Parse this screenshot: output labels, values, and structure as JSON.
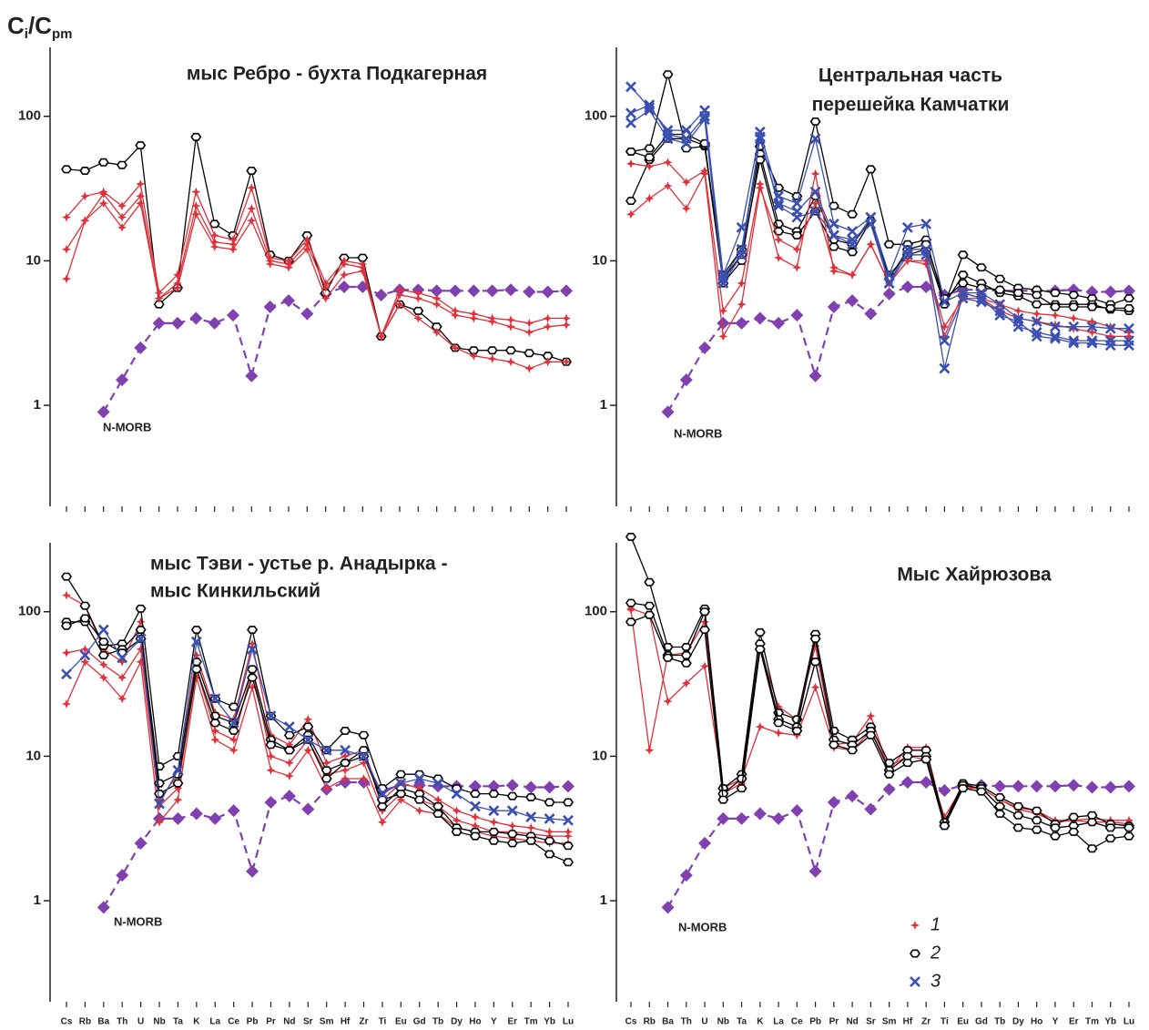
{
  "chart_data": [
    {
      "type": "line",
      "log_scale": true,
      "ylabel": [
        "C",
        "i",
        "/C",
        "pm"
      ],
      "title": [
        "мыс Ребро - бухта Подкагерная"
      ],
      "annotation": "N-MORB",
      "categories": [
        null,
        null,
        null,
        null,
        null,
        null,
        null,
        null,
        null,
        null,
        null,
        null,
        null,
        null,
        null,
        null,
        null,
        null,
        null,
        null,
        null,
        null,
        null,
        null,
        null,
        null,
        null,
        null
      ],
      "ylim": [
        0.2,
        300
      ],
      "yticks": [
        1,
        10,
        100
      ],
      "series": [
        {
          "color": "#8040b0",
          "marker": "diamond",
          "dashed": true,
          "values": [
            null,
            null,
            0.9,
            1.5,
            2.5,
            3.7,
            3.7,
            4.0,
            3.7,
            4.2,
            1.6,
            4.8,
            5.3,
            4.3,
            5.9,
            6.6,
            6.6,
            5.8,
            6.3,
            6.3,
            6.2,
            6.2,
            6.2,
            6.2,
            6.3,
            6.1,
            6.1,
            6.2
          ]
        },
        {
          "color": "#000000",
          "marker": "hexagon",
          "values": [
            43,
            42,
            48,
            46,
            63,
            5,
            6.5,
            72,
            18,
            15,
            42,
            11,
            10,
            15,
            6,
            10.5,
            10.5,
            3,
            5,
            4.5,
            3.5,
            2.5,
            2.4,
            2.4,
            2.4,
            2.3,
            2.2,
            2.0
          ]
        },
        {
          "color": "#e0303a",
          "marker": "star",
          "values": [
            20,
            28,
            30,
            24,
            34,
            6,
            8,
            30,
            15,
            14,
            32,
            10.5,
            10,
            14,
            7,
            10,
            9.5,
            3,
            6.3,
            6,
            5.5,
            4.5,
            4.3,
            4.0,
            3.9,
            3.7,
            4.0,
            4.0
          ]
        },
        {
          "color": "#e0303a",
          "marker": "star",
          "values": [
            12,
            19,
            29,
            20,
            28,
            5.5,
            7,
            24,
            13.5,
            13,
            23,
            10,
            9.5,
            13,
            6.5,
            9.5,
            9,
            3,
            5.8,
            5.5,
            5,
            4.2,
            4,
            3.8,
            3.5,
            3.2,
            3.5,
            3.6
          ]
        },
        {
          "color": "#e0303a",
          "marker": "star",
          "values": [
            7.5,
            19,
            25,
            17,
            25,
            5.5,
            6.5,
            21,
            12.5,
            12,
            19,
            9.5,
            9,
            12,
            5.5,
            8,
            8.5,
            3,
            5,
            4,
            3.2,
            2.5,
            2.2,
            2.1,
            2.0,
            1.8,
            2.0,
            2.0
          ]
        }
      ]
    },
    {
      "type": "line",
      "log_scale": true,
      "title": [
        "Центральная часть",
        "перешейка Камчатки"
      ],
      "annotation": "N-MORB",
      "categories": [
        null,
        null,
        null,
        null,
        null,
        null,
        null,
        null,
        null,
        null,
        null,
        null,
        null,
        null,
        null,
        null,
        null,
        null,
        null,
        null,
        null,
        null,
        null,
        null,
        null,
        null,
        null,
        null
      ],
      "ylim": [
        0.2,
        300
      ],
      "yticks": [
        1,
        10,
        100
      ],
      "series": [
        {
          "color": "#8040b0",
          "marker": "diamond",
          "dashed": true,
          "values": [
            null,
            null,
            0.9,
            1.5,
            2.5,
            3.7,
            3.7,
            4.0,
            3.7,
            4.2,
            1.6,
            4.8,
            5.3,
            4.3,
            5.9,
            6.6,
            6.6,
            5.8,
            6.3,
            6.3,
            6.2,
            6.2,
            6.2,
            6.2,
            6.3,
            6.1,
            6.1,
            6.2
          ]
        },
        {
          "color": "#000000",
          "marker": "hexagon",
          "values": [
            57,
            60,
            195,
            60,
            62,
            8,
            12,
            62,
            32,
            28,
            92,
            24,
            21,
            43,
            13,
            13,
            14,
            5,
            11,
            9,
            7.5,
            6.5,
            6.3,
            6,
            5.8,
            5.5,
            5,
            5.5
          ]
        },
        {
          "color": "#000000",
          "marker": "hexagon",
          "values": [
            26,
            50,
            70,
            70,
            63,
            7,
            10,
            55,
            18,
            16,
            28,
            14,
            13,
            19,
            8,
            11,
            12,
            5,
            8,
            7,
            6,
            5.7,
            5,
            5,
            5,
            5,
            4.6,
            4.5
          ]
        },
        {
          "color": "#000000",
          "marker": "hexagon",
          "values": [
            57,
            52,
            75,
            75,
            65,
            7.5,
            11,
            50,
            16,
            15,
            22,
            12.5,
            11.5,
            19,
            7.5,
            12,
            13,
            5.5,
            7,
            6.5,
            6.3,
            6,
            5.8,
            4.8,
            4.8,
            4.8,
            4.7,
            4.7
          ]
        },
        {
          "color": "#e0303a",
          "marker": "star",
          "values": [
            47,
            45,
            48,
            35,
            42,
            4.5,
            7,
            34,
            10.5,
            9,
            40,
            8.5,
            8,
            13,
            7,
            10,
            10,
            3.5,
            5.5,
            5.5,
            5,
            4.5,
            4.3,
            4.2,
            4,
            3.8,
            3.5,
            3.2
          ]
        },
        {
          "color": "#e0303a",
          "marker": "star",
          "values": [
            21,
            27,
            33,
            23,
            40,
            3,
            5,
            32,
            14,
            12,
            25,
            9,
            8,
            13,
            7,
            10,
            9.5,
            3,
            6,
            5.5,
            4.5,
            4,
            3.8,
            3.6,
            3.4,
            3.2,
            3.0,
            3.0
          ]
        },
        {
          "color": "#3a4fb0",
          "marker": "x",
          "values": [
            160,
            115,
            80,
            80,
            110,
            8,
            17,
            78,
            28,
            25,
            70,
            18,
            16,
            20,
            8,
            17,
            18,
            5.2,
            6,
            6,
            5,
            4,
            3.8,
            3.5,
            3.5,
            3.5,
            3.4,
            3.4
          ]
        },
        {
          "color": "#3a4fb0",
          "marker": "x",
          "values": [
            105,
            120,
            75,
            70,
            100,
            7.5,
            12,
            70,
            25,
            22,
            30,
            15,
            13,
            20,
            7,
            12,
            12,
            2.8,
            5.5,
            5.2,
            4.5,
            3.5,
            3.2,
            3,
            2.8,
            2.8,
            2.8,
            2.8
          ]
        },
        {
          "color": "#3a4fb0",
          "marker": "x",
          "values": [
            90,
            110,
            70,
            65,
            95,
            7,
            11,
            72,
            24,
            20,
            22,
            15,
            14,
            18,
            7,
            11,
            11,
            1.8,
            6,
            5.5,
            4.2,
            3.8,
            3,
            2.9,
            2.7,
            2.7,
            2.6,
            2.6
          ]
        }
      ]
    },
    {
      "type": "line",
      "log_scale": true,
      "title": [
        "мыс Тэви - устье р. Анадырка -",
        "мыс Кинкильский"
      ],
      "annotation": "N-MORB",
      "categories": [
        "Cs",
        "Rb",
        "Ba",
        "Th",
        "U",
        "Nb",
        "Ta",
        "K",
        "La",
        "Ce",
        "Pb",
        "Pr",
        "Nd",
        "Sr",
        "Sm",
        "Hf",
        "Zr",
        "Ti",
        "Eu",
        "Gd",
        "Tb",
        "Dy",
        "Ho",
        "Y",
        "Er",
        "Tm",
        "Yb",
        "Lu"
      ],
      "ylim": [
        0.2,
        300
      ],
      "yticks": [
        1,
        10,
        100
      ],
      "series": [
        {
          "color": "#8040b0",
          "marker": "diamond",
          "dashed": true,
          "values": [
            null,
            null,
            0.9,
            1.5,
            2.5,
            3.7,
            3.7,
            4.0,
            3.7,
            4.2,
            1.6,
            4.8,
            5.3,
            4.3,
            5.9,
            6.6,
            6.6,
            5.8,
            6.3,
            6.3,
            6.2,
            6.2,
            6.2,
            6.2,
            6.3,
            6.1,
            6.1,
            6.2
          ]
        },
        {
          "color": "#e0303a",
          "marker": "star",
          "values": [
            130,
            110,
            55,
            45,
            85,
            5,
            7.5,
            50,
            20,
            18,
            60,
            14,
            12,
            18,
            9,
            10,
            11,
            5,
            6.5,
            6,
            5,
            4.2,
            3.8,
            3.5,
            3.3,
            3.2,
            3,
            3
          ]
        },
        {
          "color": "#e0303a",
          "marker": "star",
          "values": [
            52,
            55,
            43,
            35,
            55,
            4.5,
            6,
            40,
            15,
            13,
            40,
            10,
            9,
            13,
            7.5,
            8,
            9,
            4.2,
            5.5,
            5,
            4.5,
            3.6,
            3.3,
            3,
            3,
            2.9,
            2.8,
            2.8
          ]
        },
        {
          "color": "#e0303a",
          "marker": "star",
          "values": [
            23,
            45,
            35,
            25,
            45,
            3.5,
            5,
            35,
            13,
            11,
            30,
            8,
            7.3,
            11,
            6,
            7,
            7,
            3.5,
            5,
            4.2,
            4,
            3.2,
            3,
            2.8,
            2.7,
            2.6,
            2.5,
            2.5
          ]
        },
        {
          "color": "#000000",
          "marker": "hexagon",
          "values": [
            175,
            110,
            58,
            60,
            105,
            8.5,
            10,
            75,
            25,
            22,
            75,
            19,
            14,
            16,
            11,
            15,
            14,
            6,
            7.5,
            7.5,
            7,
            6,
            5.5,
            5.5,
            5.3,
            5.2,
            4.8,
            4.8
          ]
        },
        {
          "color": "#000000",
          "marker": "hexagon",
          "values": [
            85,
            85,
            50,
            55,
            75,
            6.5,
            7.5,
            45,
            19,
            17,
            40,
            13,
            11,
            14,
            8,
            9,
            11,
            4.5,
            6,
            5.5,
            4.5,
            3.2,
            3,
            3,
            2.9,
            2.8,
            2.6,
            2.4
          ]
        },
        {
          "color": "#000000",
          "marker": "hexagon",
          "values": [
            80,
            90,
            62,
            52,
            65,
            5.5,
            6.5,
            40,
            17,
            15,
            35,
            12,
            11,
            13,
            7,
            9,
            10,
            5,
            5.5,
            5,
            4,
            3,
            2.8,
            2.6,
            2.5,
            2.6,
            2.1,
            1.85
          ]
        },
        {
          "color": "#3a4fb0",
          "marker": "x",
          "values": [
            37,
            50,
            75,
            48,
            65,
            4.7,
            8,
            62,
            25,
            17,
            55,
            19,
            16,
            13,
            11,
            11,
            10,
            5.5,
            6.5,
            7,
            6.5,
            5.5,
            4.5,
            4.2,
            4.2,
            3.8,
            3.7,
            3.6
          ]
        }
      ]
    },
    {
      "type": "line",
      "log_scale": true,
      "title": [
        "Мыс Хайрюзова"
      ],
      "annotation": "N-MORB",
      "categories": [
        "Cs",
        "Rb",
        "Ba",
        "Th",
        "U",
        "Nb",
        "Ta",
        "K",
        "La",
        "Ce",
        "Pb",
        "Pr",
        "Nd",
        "Sr",
        "Sm",
        "Hf",
        "Zr",
        "Ti",
        "Eu",
        "Gd",
        "Tb",
        "Dy",
        "Ho",
        "Y",
        "Er",
        "Tm",
        "Yb",
        "Lu"
      ],
      "ylim": [
        0.2,
        300
      ],
      "yticks": [
        1,
        10,
        100
      ],
      "legend": [
        {
          "label": "1",
          "marker": "star",
          "color": "#e0303a"
        },
        {
          "label": "2",
          "marker": "hexagon",
          "color": "#000000"
        },
        {
          "label": "3",
          "marker": "x",
          "color": "#3a4fb0"
        }
      ],
      "series": [
        {
          "color": "#8040b0",
          "marker": "diamond",
          "dashed": true,
          "values": [
            null,
            null,
            0.9,
            1.5,
            2.5,
            3.7,
            3.7,
            4.0,
            3.7,
            4.2,
            1.6,
            4.8,
            5.3,
            4.3,
            5.9,
            6.6,
            6.6,
            5.8,
            6.3,
            6.3,
            6.2,
            6.2,
            6.2,
            6.2,
            6.3,
            6.1,
            6.1,
            6.2
          ]
        },
        {
          "color": "#e0303a",
          "marker": "star",
          "values": [
            105,
            95,
            24,
            32,
            42,
            6,
            7,
            16,
            14.5,
            14,
            30,
            11.5,
            11,
            15,
            8.5,
            10,
            9.5,
            3.8,
            6.2,
            6,
            5,
            4.4,
            4.2,
            3.6,
            3.6,
            3.5,
            3.5,
            3.4
          ]
        },
        {
          "color": "#e0303a",
          "marker": "star",
          "values": [
            103,
            11,
            50,
            52,
            85,
            5.5,
            6.5,
            55,
            22,
            18,
            58,
            12,
            12.5,
            19,
            8,
            11.5,
            11.5,
            3.5,
            6,
            6,
            5,
            4.3,
            4,
            3.5,
            3.6,
            3.7,
            3.6,
            3.6
          ]
        },
        {
          "color": "#000000",
          "marker": "hexagon",
          "values": [
            330,
            160,
            57,
            57,
            105,
            6,
            7.5,
            72,
            20,
            18,
            70,
            15,
            13,
            16,
            9,
            11,
            11,
            3.5,
            6.5,
            6.2,
            5.2,
            4.5,
            4.2,
            3.4,
            3.8,
            3.9,
            3.4,
            3.3
          ]
        },
        {
          "color": "#000000",
          "marker": "hexagon",
          "values": [
            115,
            110,
            50,
            50,
            100,
            5.5,
            7,
            60,
            18,
            16,
            65,
            13,
            12,
            15,
            8,
            10,
            10,
            3.3,
            6.3,
            6,
            4.5,
            3.9,
            3.6,
            3.2,
            3.3,
            3.5,
            3.2,
            3.2
          ]
        },
        {
          "color": "#000000",
          "marker": "hexagon",
          "values": [
            85,
            95,
            48,
            44,
            75,
            5,
            6,
            55,
            17,
            15,
            45,
            12,
            11,
            14,
            7.5,
            9,
            9.5,
            3.3,
            6,
            5.7,
            4,
            3.2,
            3.1,
            2.8,
            3,
            2.3,
            2.7,
            2.8
          ]
        }
      ]
    }
  ]
}
